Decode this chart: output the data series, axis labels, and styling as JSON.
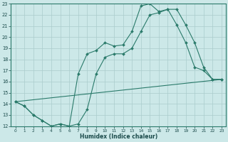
{
  "bg_color": "#cce8e8",
  "grid_color": "#aacccc",
  "line_color": "#2a7a6a",
  "xlabel": "Humidex (Indice chaleur)",
  "xlim": [
    -0.5,
    23.5
  ],
  "ylim": [
    12,
    23
  ],
  "xticks": [
    0,
    1,
    2,
    3,
    4,
    5,
    6,
    7,
    8,
    9,
    10,
    11,
    12,
    13,
    14,
    15,
    16,
    17,
    18,
    19,
    20,
    21,
    22,
    23
  ],
  "yticks": [
    12,
    13,
    14,
    15,
    16,
    17,
    18,
    19,
    20,
    21,
    22,
    23
  ],
  "line1_x": [
    0,
    1,
    2,
    3,
    4,
    5,
    6,
    7,
    8,
    9,
    10,
    11,
    12,
    13,
    14,
    15,
    16,
    17,
    18,
    19,
    20,
    21,
    22,
    23
  ],
  "line1_y": [
    14.2,
    13.8,
    13.0,
    12.5,
    12.0,
    12.2,
    12.0,
    16.7,
    18.5,
    18.8,
    19.5,
    19.2,
    19.3,
    20.5,
    22.8,
    23.0,
    22.3,
    22.5,
    21.1,
    19.5,
    17.3,
    17.0,
    16.2,
    16.2
  ],
  "line2_x": [
    0,
    1,
    2,
    3,
    4,
    5,
    6,
    7,
    8,
    9,
    10,
    11,
    12,
    13,
    14,
    15,
    16,
    17,
    18,
    19,
    20,
    21,
    22,
    23
  ],
  "line2_y": [
    14.2,
    13.8,
    13.0,
    12.5,
    12.0,
    12.2,
    12.0,
    12.2,
    13.5,
    16.7,
    18.2,
    18.5,
    18.5,
    19.0,
    20.5,
    22.0,
    22.2,
    22.5,
    22.5,
    21.1,
    19.5,
    17.3,
    16.2,
    16.2
  ],
  "line3_x": [
    0,
    23
  ],
  "line3_y": [
    14.2,
    16.2
  ]
}
